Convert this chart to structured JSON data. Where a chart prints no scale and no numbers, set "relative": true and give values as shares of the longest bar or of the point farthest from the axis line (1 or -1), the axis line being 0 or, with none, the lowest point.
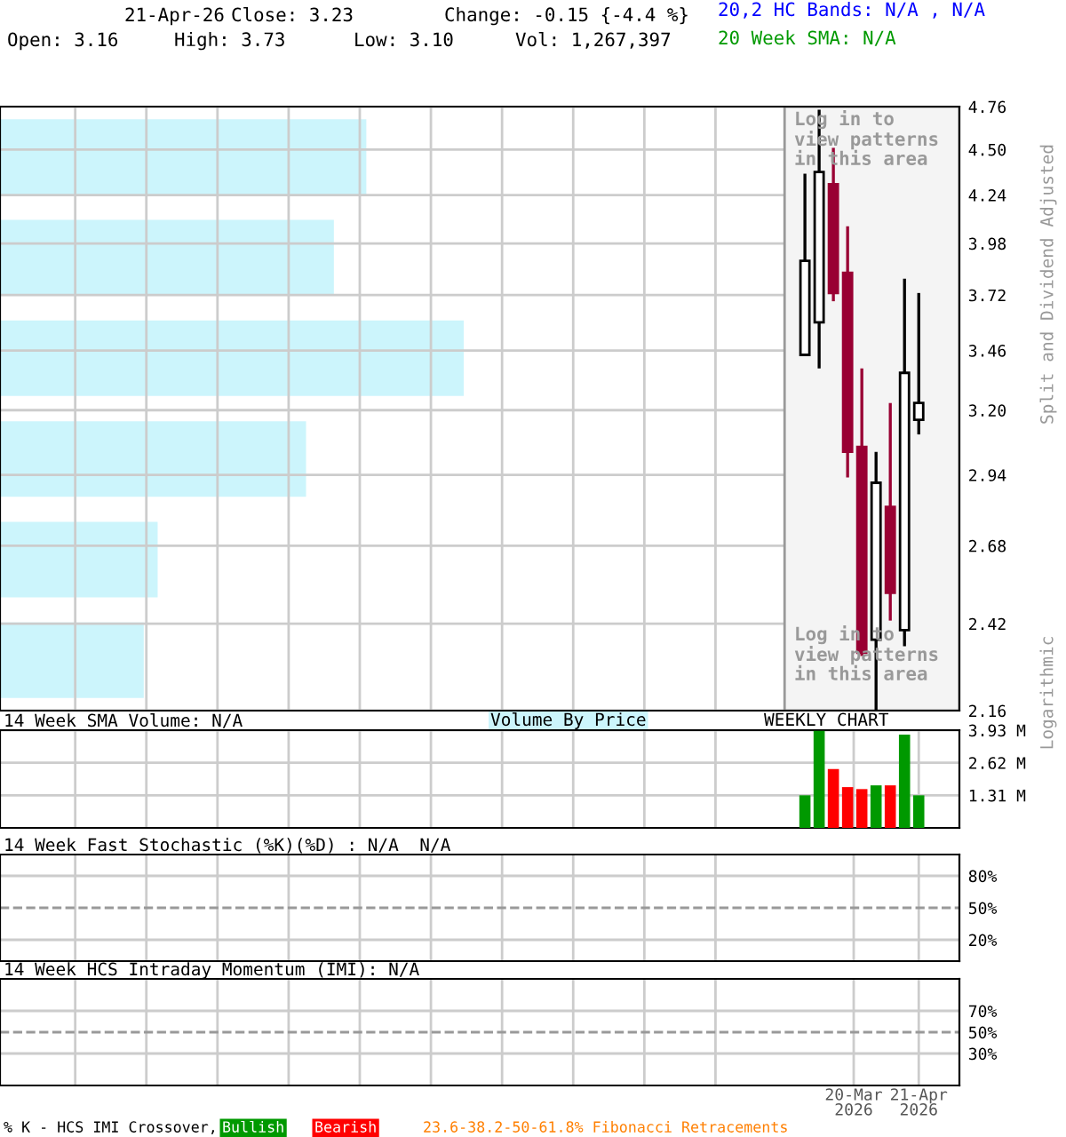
{
  "chart_data": [
    {
      "type": "candlestick",
      "x": [
        "2026-02-24",
        "2026-03-03",
        "2026-03-10",
        "2026-03-17",
        "2026-03-24",
        "2026-03-31",
        "2026-04-07",
        "2026-04-14",
        "2026-04-21"
      ],
      "ohlc": [
        [
          3.44,
          4.36,
          3.44,
          3.89
        ],
        [
          3.59,
          4.74,
          3.38,
          4.37
        ],
        [
          4.3,
          4.51,
          3.69,
          3.73
        ],
        [
          3.83,
          4.07,
          2.93,
          3.03
        ],
        [
          3.05,
          3.38,
          2.32,
          2.33
        ],
        [
          2.37,
          3.03,
          2.16,
          2.91
        ],
        [
          2.82,
          3.23,
          2.43,
          2.52
        ],
        [
          2.4,
          3.8,
          2.35,
          3.36
        ],
        [
          3.16,
          3.73,
          3.1,
          3.23
        ]
      ],
      "colors": [
        "#ffffff",
        "#ffffff",
        "#990033",
        "#990033",
        "#990033",
        "#ffffff",
        "#990033",
        "#ffffff",
        "#ffffff"
      ],
      "log": true,
      "ylim": [
        2.16,
        4.76
      ],
      "yticks": [
        2.16,
        2.42,
        2.68,
        2.94,
        {
          "value": 3.2,
          "label": "3.20"
        },
        3.46,
        3.72,
        3.98,
        4.24,
        {
          "value": 4.5,
          "label": "4.50"
        },
        4.76
      ],
      "xlim": [
        "2025-01-24",
        "2026-05-11"
      ],
      "xticks": [
        {
          "value": "2025-03-02",
          "label": null
        },
        {
          "value": "2025-04-06",
          "label": null
        },
        {
          "value": "2025-05-11",
          "label": null
        },
        {
          "value": "2025-06-15",
          "label": null
        },
        {
          "value": "2025-07-20",
          "label": null
        },
        {
          "value": "2025-08-24",
          "label": null
        },
        {
          "value": "2025-09-28",
          "label": null
        },
        {
          "value": "2025-11-02",
          "label": null
        },
        {
          "value": "2025-12-07",
          "label": null
        },
        {
          "value": "2026-01-11",
          "label": null
        },
        {
          "value": "2026-03-20",
          "label": null
        },
        {
          "value": "2026-04-21",
          "label": null
        }
      ],
      "tick_labels": "y",
      "grid": true,
      "bands": [
        {
          "axis": "x",
          "from": "2026-02-14",
          "to": "2026-05-11",
          "color": "#f4f4f4"
        }
      ],
      "annotations": [
        "21-Apr-26",
        "Close: 3.23",
        "Change: -0.15 {-4.4 %}",
        "Open: 3.16",
        "High: 3.73",
        "Low: 3.10",
        "Vol: 1,267,397",
        "20,2 HC Bands: N/A , N/A",
        "20 Week SMA: N/A",
        "Log in to\nview patterns\nin this area",
        "Log in to\nview patterns\nin this area",
        "Split and Dividend Adjusted",
        "Logarithmic"
      ]
    },
    {
      "type": "bar",
      "orientation": "horizontal",
      "relative": true,
      "legend": "bottom",
      "categories": [
        null,
        null,
        null,
        null,
        null,
        null
      ],
      "series": [
        {
          "name": "Volume By Price",
          "color": "#ccf5fc",
          "values": [
            0.79,
            0.72,
            1,
            0.66,
            0.34,
            0.31
          ]
        }
      ]
    },
    {
      "type": "bar",
      "title": "14 Week SMA Volume: N/A",
      "x": [
        "2026-02-24",
        "2026-03-03",
        "2026-03-10",
        "2026-03-17",
        "2026-03-24",
        "2026-03-31",
        "2026-04-07",
        "2026-04-14",
        "2026-04-21"
      ],
      "values": [
        1.31,
        3.9,
        2.37,
        1.64,
        1.56,
        1.71,
        1.71,
        3.75,
        1.31
      ],
      "colors": [
        "#009900",
        "#009900",
        "#ff0000",
        "#ff0000",
        "#ff0000",
        "#009900",
        "#ff0000",
        "#009900",
        "#009900"
      ],
      "ylim": [
        0,
        3.93
      ],
      "yticks": [
        {
          "value": 1.31,
          "label": "1.31 M"
        },
        {
          "value": 2.62,
          "label": "2.62 M"
        },
        {
          "value": 3.93,
          "label": "3.93 M"
        }
      ],
      "xlim": [
        "2025-01-24",
        "2026-05-11"
      ],
      "xticks": [
        {
          "value": "2025-03-02",
          "label": null
        },
        {
          "value": "2025-04-06",
          "label": null
        },
        {
          "value": "2025-05-11",
          "label": null
        },
        {
          "value": "2025-06-15",
          "label": null
        },
        {
          "value": "2025-07-20",
          "label": null
        },
        {
          "value": "2025-08-24",
          "label": null
        },
        {
          "value": "2025-09-28",
          "label": null
        },
        {
          "value": "2025-11-02",
          "label": null
        },
        {
          "value": "2025-12-07",
          "label": null
        },
        {
          "value": "2026-01-11",
          "label": null
        },
        {
          "value": "2026-03-20",
          "label": null
        },
        {
          "value": "2026-04-21",
          "label": null
        }
      ],
      "tick_labels": "y",
      "grid": true,
      "annotations": [
        "WEEKLY CHART"
      ]
    },
    {
      "type": "line",
      "title": "14 Week Fast Stochastic (%K)(%D) : N/A  N/A",
      "ylim": [
        0,
        100
      ],
      "yticks": [
        {
          "value": 20,
          "label": "20%"
        },
        {
          "value": 50,
          "label": "50%"
        },
        {
          "value": 80,
          "label": "80%"
        }
      ],
      "xlim": [
        "2025-01-24",
        "2026-05-11"
      ],
      "xticks": [
        {
          "value": "2025-03-02",
          "label": null
        },
        {
          "value": "2025-04-06",
          "label": null
        },
        {
          "value": "2025-05-11",
          "label": null
        },
        {
          "value": "2025-06-15",
          "label": null
        },
        {
          "value": "2025-07-20",
          "label": null
        },
        {
          "value": "2025-08-24",
          "label": null
        },
        {
          "value": "2025-09-28",
          "label": null
        },
        {
          "value": "2025-11-02",
          "label": null
        },
        {
          "value": "2025-12-07",
          "label": null
        },
        {
          "value": "2026-01-11",
          "label": null
        },
        {
          "value": "2026-03-20",
          "label": null
        },
        {
          "value": "2026-04-21",
          "label": null
        }
      ],
      "tick_labels": "y",
      "grid": true,
      "ref_lines": [
        {
          "axis": "y",
          "value": 50,
          "label": null,
          "line_style": "dashed",
          "color": "#999999"
        }
      ]
    },
    {
      "type": "line",
      "title": "14 Week HCS Intraday Momentum (IMI): N/A",
      "ylim": [
        0,
        100
      ],
      "yticks": [
        {
          "value": 30,
          "label": "30%"
        },
        {
          "value": 50,
          "label": "50%"
        },
        {
          "value": 70,
          "label": "70%"
        }
      ],
      "xlim": [
        "2025-01-24",
        "2026-05-11"
      ],
      "xticks": [
        {
          "value": "2025-03-02",
          "label": null
        },
        {
          "value": "2025-04-06",
          "label": null
        },
        {
          "value": "2025-05-11",
          "label": null
        },
        {
          "value": "2025-06-15",
          "label": null
        },
        {
          "value": "2025-07-20",
          "label": null
        },
        {
          "value": "2025-08-24",
          "label": null
        },
        {
          "value": "2025-09-28",
          "label": null
        },
        {
          "value": "2025-11-02",
          "label": null
        },
        {
          "value": "2025-12-07",
          "label": null
        },
        {
          "value": "2026-01-11",
          "label": null
        },
        {
          "value": "2026-03-20",
          "label": "20-Mar\n2026"
        },
        {
          "value": "2026-04-21",
          "label": "21-Apr\n2026"
        }
      ],
      "grid": true,
      "ref_lines": [
        {
          "axis": "y",
          "value": 50,
          "label": null,
          "line_style": "dashed",
          "color": "#999999"
        }
      ],
      "annotations": [
        "% K - HCS IMI Crossover,",
        "Bullish",
        "Bearish",
        "23.6-38.2-50-61.8% Fibonacci Retracements"
      ]
    }
  ]
}
